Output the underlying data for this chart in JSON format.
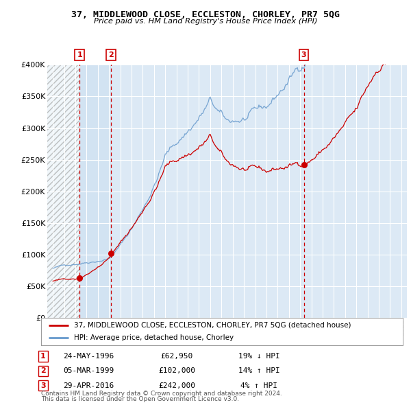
{
  "title": "37, MIDDLEWOOD CLOSE, ECCLESTON, CHORLEY, PR7 5QG",
  "subtitle": "Price paid vs. HM Land Registry's House Price Index (HPI)",
  "sale1_x": 1996.39,
  "sale1_price": 62950,
  "sale2_x": 1999.18,
  "sale2_price": 102000,
  "sale3_x": 2016.33,
  "sale3_price": 242000,
  "xmin": 1993.5,
  "xmax": 2025.5,
  "ymin": 0,
  "ymax": 400000,
  "yticks": [
    0,
    50000,
    100000,
    150000,
    200000,
    250000,
    300000,
    350000,
    400000
  ],
  "line1_color": "#cc0000",
  "line2_color": "#6699cc",
  "marker_color": "#cc0000",
  "dashed_line_color": "#cc0000",
  "dashed_line1_x": 1996.39,
  "dashed_line2_x": 1999.18,
  "dashed_line3_x": 2016.33,
  "plot_bg_color": "#dce9f5",
  "grid_color": "#ffffff",
  "legend1_label": "37, MIDDLEWOOD CLOSE, ECCLESTON, CHORLEY, PR7 5QG (detached house)",
  "legend2_label": "HPI: Average price, detached house, Chorley",
  "table_row1": [
    "1",
    "24-MAY-1996",
    "£62,950",
    "19% ↓ HPI"
  ],
  "table_row2": [
    "2",
    "05-MAR-1999",
    "£102,000",
    "14% ↑ HPI"
  ],
  "table_row3": [
    "3",
    "29-APR-2016",
    "£242,000",
    "4% ↑ HPI"
  ],
  "footnote1": "Contains HM Land Registry data © Crown copyright and database right 2024.",
  "footnote2": "This data is licensed under the Open Government Licence v3.0."
}
